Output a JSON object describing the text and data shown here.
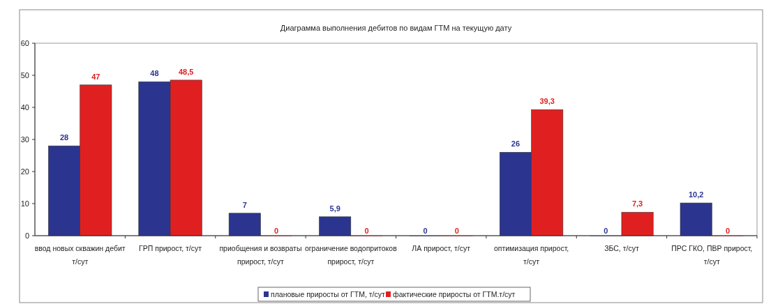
{
  "chart_data": {
    "type": "bar",
    "title": "Диаграмма выполнения дебитов по видам ГТМ на текущую дату",
    "categories": [
      "ввод новых скважин дебит т/сут",
      "ГРП прирост, т/сут",
      "приобщения и возвраты прирост, т/сут",
      "ограничение водопритоков прирост, т/сут",
      "ЛА прирост, т/сут",
      "оптимизация прирост, т/сут",
      "ЗБС, т/сут",
      "ПРС ГКО, ПВР прирост, т/сут"
    ],
    "series": [
      {
        "name": "плановые приросты от  ГТМ, т/сут",
        "color": "#2b3590",
        "values": [
          28,
          48,
          7,
          5.9,
          0,
          26,
          0,
          10.2
        ],
        "value_labels": [
          "28",
          "48",
          "7",
          "5,9",
          "0",
          "26",
          "0",
          "10,2"
        ]
      },
      {
        "name": "фактические приросты от ГТМ.т/сут",
        "color": "#e02020",
        "values": [
          47,
          48.5,
          0,
          0,
          0,
          39.3,
          7.3,
          0
        ],
        "value_labels": [
          "47",
          "48,5",
          "0",
          "0",
          "0",
          "39,3",
          "7,3",
          "0"
        ]
      }
    ],
    "ylim": [
      0,
      60
    ],
    "yticks": [
      0,
      10,
      20,
      30,
      40,
      50,
      60
    ],
    "grid": false,
    "legend": "bottom"
  }
}
